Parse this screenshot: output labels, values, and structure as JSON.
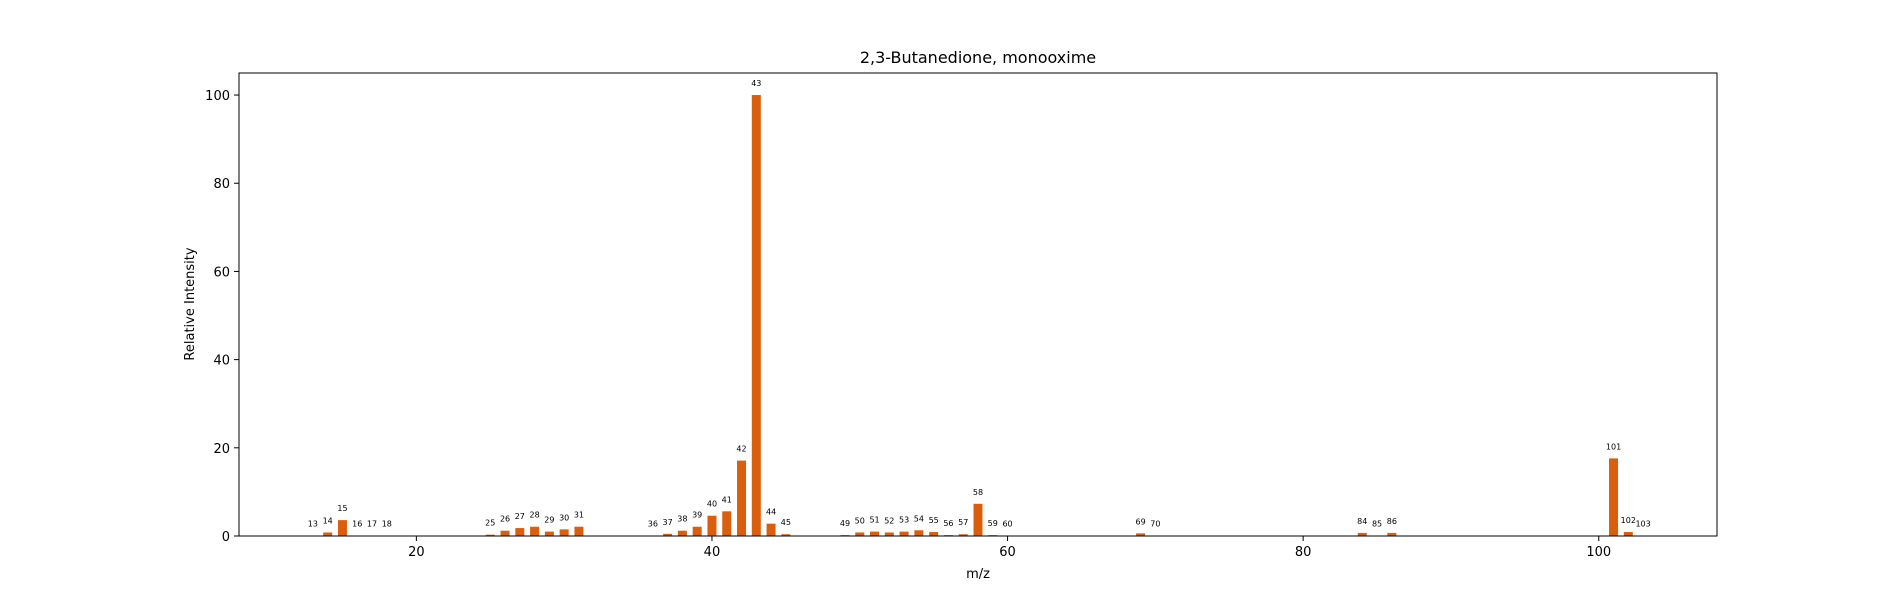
{
  "chart_data": {
    "type": "bar",
    "title": "2,3-Butanedione, monooxime",
    "xlabel": "m/z",
    "ylabel": "Relative Intensity",
    "xlim": [
      8,
      108
    ],
    "ylim": [
      0,
      105
    ],
    "x_ticks": [
      20,
      40,
      60,
      80,
      100
    ],
    "y_ticks": [
      0,
      20,
      40,
      60,
      80,
      100
    ],
    "bar_color": "#d95f0e",
    "grid": false,
    "legend": "none",
    "x": [
      13,
      14,
      15,
      16,
      17,
      18,
      25,
      26,
      27,
      28,
      29,
      30,
      31,
      36,
      37,
      38,
      39,
      40,
      41,
      42,
      43,
      44,
      45,
      49,
      50,
      51,
      52,
      53,
      54,
      55,
      56,
      57,
      58,
      59,
      60,
      69,
      70,
      84,
      85,
      86,
      101,
      102,
      103
    ],
    "values": [
      0.1,
      0.8,
      3.6,
      0.1,
      0.1,
      0.1,
      0.3,
      1.2,
      1.8,
      2.1,
      1.0,
      1.5,
      2.1,
      0.1,
      0.5,
      1.2,
      2.1,
      4.6,
      5.6,
      17.1,
      100,
      2.8,
      0.4,
      0.2,
      0.8,
      1.0,
      0.8,
      1.0,
      1.3,
      0.9,
      0.2,
      0.4,
      7.3,
      0.2,
      0.1,
      0.6,
      0.1,
      0.7,
      0.1,
      0.7,
      17.6,
      0.9,
      0.1
    ]
  }
}
